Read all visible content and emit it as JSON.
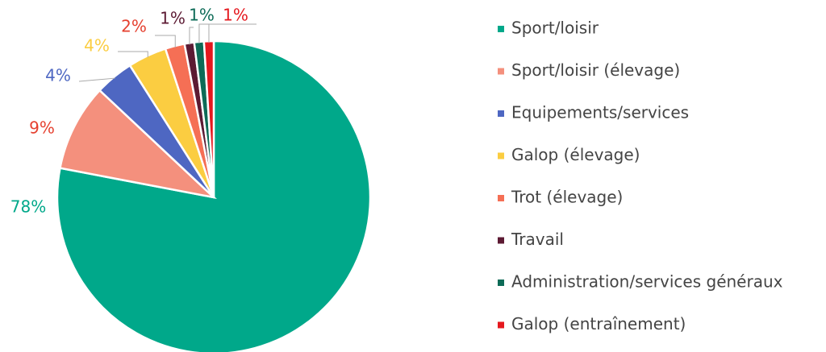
{
  "chart_data": {
    "type": "pie",
    "categories": [
      "Sport/loisir",
      "Sport/loisir (élevage)",
      "Equipements/services",
      "Galop (élevage)",
      "Trot (élevage)",
      "Travail",
      "Administration/services généraux",
      "Galop (entraînement)"
    ],
    "values": [
      78,
      9,
      4,
      4,
      2,
      1,
      1,
      1
    ],
    "value_labels": [
      "78%",
      "9%",
      "4%",
      "4%",
      "2%",
      "1%",
      "1%",
      "1%"
    ],
    "colors": [
      "#00a88a",
      "#f4907d",
      "#4e67c2",
      "#fbcd41",
      "#f56f55",
      "#5c1a33",
      "#0d6b57",
      "#e5181e"
    ],
    "legend": "right"
  }
}
